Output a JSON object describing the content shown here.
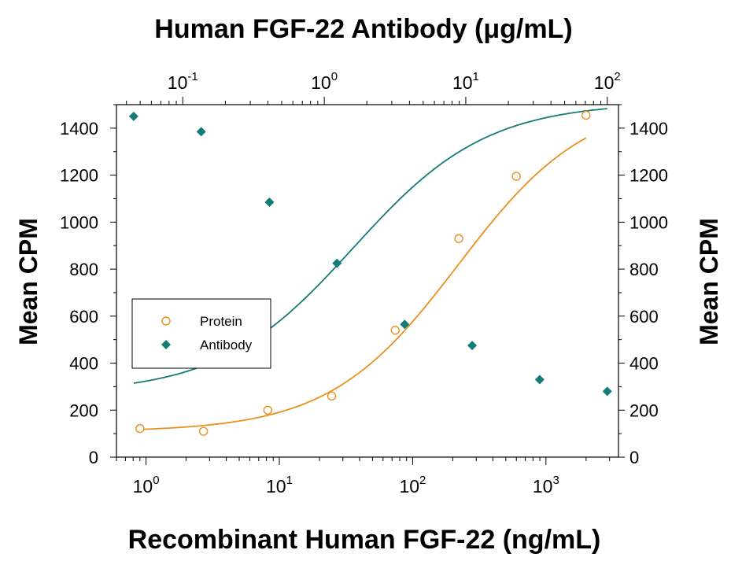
{
  "chart_data": {
    "type": "scatter",
    "title": "Human FGF-22 Antibody (μg/mL)",
    "xlabel": "Recombinant Human FGF-22 (ng/mL)",
    "ylabel": "Mean CPM",
    "ylabel_right": "Mean CPM",
    "x_scale": "log",
    "x_range": [
      0.6,
      3500
    ],
    "top_x_scale": "log",
    "top_x_range": [
      0.034,
      120
    ],
    "ylim": [
      0,
      1500
    ],
    "y_ticks": [
      0,
      200,
      400,
      600,
      800,
      1000,
      1200,
      1400
    ],
    "x_tick_labels": [
      {
        "base": "10",
        "exp": "0",
        "value": 1
      },
      {
        "base": "10",
        "exp": "1",
        "value": 10
      },
      {
        "base": "10",
        "exp": "2",
        "value": 100
      },
      {
        "base": "10",
        "exp": "3",
        "value": 1000
      }
    ],
    "top_tick_labels": [
      {
        "base": "10",
        "exp": "-1",
        "value": 0.1
      },
      {
        "base": "10",
        "exp": "0",
        "value": 1
      },
      {
        "base": "10",
        "exp": "1",
        "value": 10
      },
      {
        "base": "10",
        "exp": "2",
        "value": 100
      }
    ],
    "series": [
      {
        "name": "Protein",
        "axis": "bottom",
        "marker": "open-circle",
        "color": "#E8901C",
        "x": [
          0.9,
          2.7,
          8.2,
          24.7,
          74,
          222,
          600,
          2000
        ],
        "y": [
          122,
          110,
          200,
          260,
          540,
          930,
          1195,
          1455
        ],
        "fit": {
          "model": "4PL",
          "bottom": 108,
          "top": 1530,
          "ec50": 220,
          "hill": 0.9
        }
      },
      {
        "name": "Antibody",
        "axis": "top",
        "marker": "filled-diamond",
        "color": "#137B78",
        "x": [
          0.045,
          0.135,
          0.41,
          1.23,
          3.7,
          11.1,
          33.3,
          100
        ],
        "y": [
          1450,
          1385,
          1085,
          825,
          565,
          475,
          330,
          280
        ],
        "fit": {
          "model": "4PL",
          "bottom": 270,
          "top": 1510,
          "ec50": 1.6,
          "hill": 0.92
        }
      }
    ],
    "legend": {
      "placement": "center-left"
    },
    "grid": false
  }
}
